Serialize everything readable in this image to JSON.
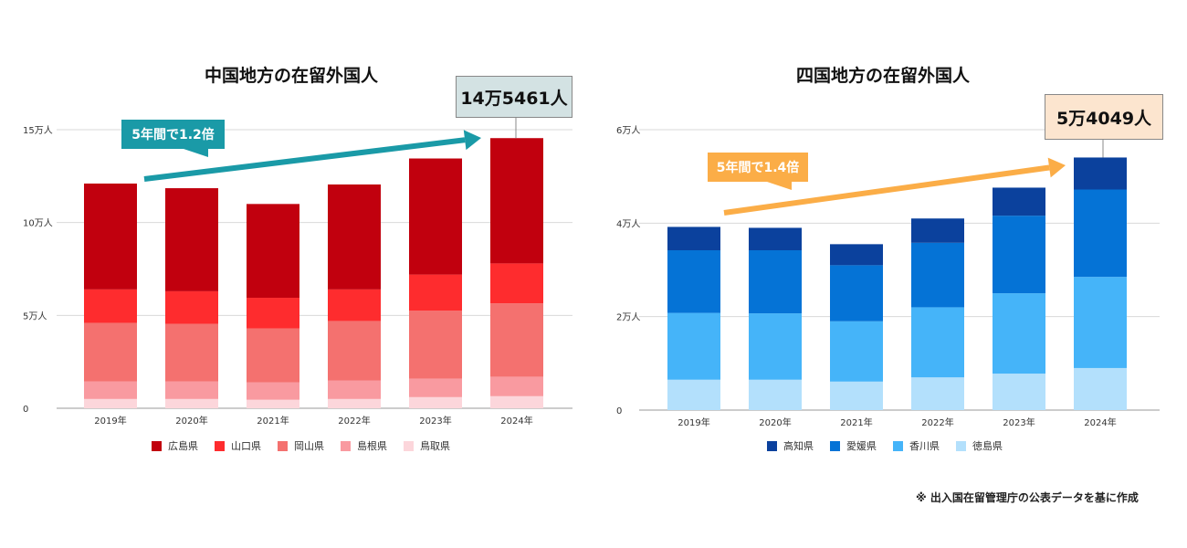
{
  "chart_data": [
    {
      "type": "bar",
      "stacked": true,
      "title": "中国地方の在留外国人",
      "categories": [
        "2019年",
        "2020年",
        "2021年",
        "2022年",
        "2023年",
        "2024年"
      ],
      "yticks": [
        "0",
        "5万人",
        "10万人",
        "15万人"
      ],
      "ylim": [
        0,
        150000
      ],
      "grid": true,
      "legend_position": "bottom",
      "series": [
        {
          "name": "鳥取県",
          "color": "#fcd6db",
          "values": [
            5000,
            5000,
            4600,
            5000,
            6000,
            6500
          ]
        },
        {
          "name": "島根県",
          "color": "#f99aa0",
          "values": [
            9500,
            9500,
            9400,
            10000,
            10000,
            10500
          ]
        },
        {
          "name": "岡山県",
          "color": "#f4716f",
          "values": [
            31500,
            31000,
            29000,
            32000,
            36500,
            39500
          ]
        },
        {
          "name": "山口県",
          "color": "#fe2c2e",
          "values": [
            18000,
            17500,
            16500,
            17000,
            19500,
            21500
          ]
        },
        {
          "name": "広島県",
          "color": "#c1000e",
          "values": [
            57000,
            55500,
            50500,
            56500,
            62500,
            67461
          ]
        }
      ],
      "callout": "14万5461人",
      "arrow_label": "5年間で1.2倍"
    },
    {
      "type": "bar",
      "stacked": true,
      "title": "四国地方の在留外国人",
      "categories": [
        "2019年",
        "2020年",
        "2021年",
        "2022年",
        "2023年",
        "2024年"
      ],
      "yticks": [
        "0",
        "2万人",
        "4万人",
        "6万人"
      ],
      "ylim": [
        0,
        60000
      ],
      "grid": true,
      "legend_position": "bottom",
      "series": [
        {
          "name": "徳島県",
          "color": "#b3e0fc",
          "values": [
            6500,
            6500,
            6100,
            7000,
            7800,
            9000
          ]
        },
        {
          "name": "香川県",
          "color": "#45b4f9",
          "values": [
            14300,
            14200,
            12900,
            15000,
            17200,
            19500
          ]
        },
        {
          "name": "愛媛県",
          "color": "#0573d6",
          "values": [
            13400,
            13500,
            12000,
            13800,
            16600,
            18700
          ]
        },
        {
          "name": "高知県",
          "color": "#0b419d",
          "values": [
            5000,
            4800,
            4500,
            5200,
            6000,
            6849
          ]
        }
      ],
      "callout": "5万4049人",
      "arrow_label": "5年間で1.4倍"
    }
  ],
  "note": "※ 出入国在留管理庁の公表データを基に作成",
  "colors": {
    "arrow_left": "#1a9aa7",
    "arrow_right": "#fbad47",
    "callout_left_bg": "#d3e2e3",
    "callout_right_bg": "#fce5cf"
  }
}
